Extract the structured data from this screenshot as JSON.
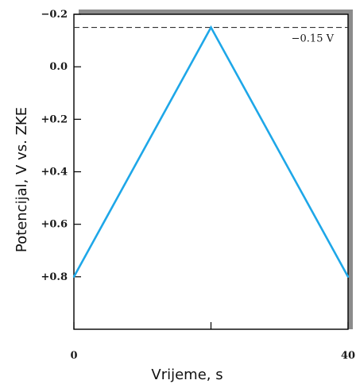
{
  "chart_data": {
    "type": "line",
    "title": "",
    "xlabel": "Vrijeme, s",
    "ylabel": "Potencijal, V vs. ZKE",
    "x": [
      0,
      20,
      40
    ],
    "series": [
      {
        "values": [
          0.8,
          -0.15,
          0.8
        ]
      }
    ],
    "xlim": [
      0,
      40
    ],
    "ylim": [
      -0.2,
      1.0
    ],
    "y_inverted": true,
    "x_ticks": [
      0,
      20,
      40
    ],
    "x_tick_labels": [
      "0",
      "",
      "40"
    ],
    "y_ticks": [
      -0.2,
      0.0,
      0.2,
      0.4,
      0.6,
      0.8
    ],
    "y_tick_labels": [
      "−0.2",
      "0.0",
      "+0.2",
      "+0.4",
      "+0.6",
      "+0.8"
    ],
    "reference_line": {
      "y": -0.15,
      "style": "dashed",
      "label": "−0.15 V"
    },
    "grid": false,
    "legend": "none",
    "line_color": "#1ea7e8",
    "frame_color": "#000000",
    "shadow_color": "#8c8c8c"
  }
}
